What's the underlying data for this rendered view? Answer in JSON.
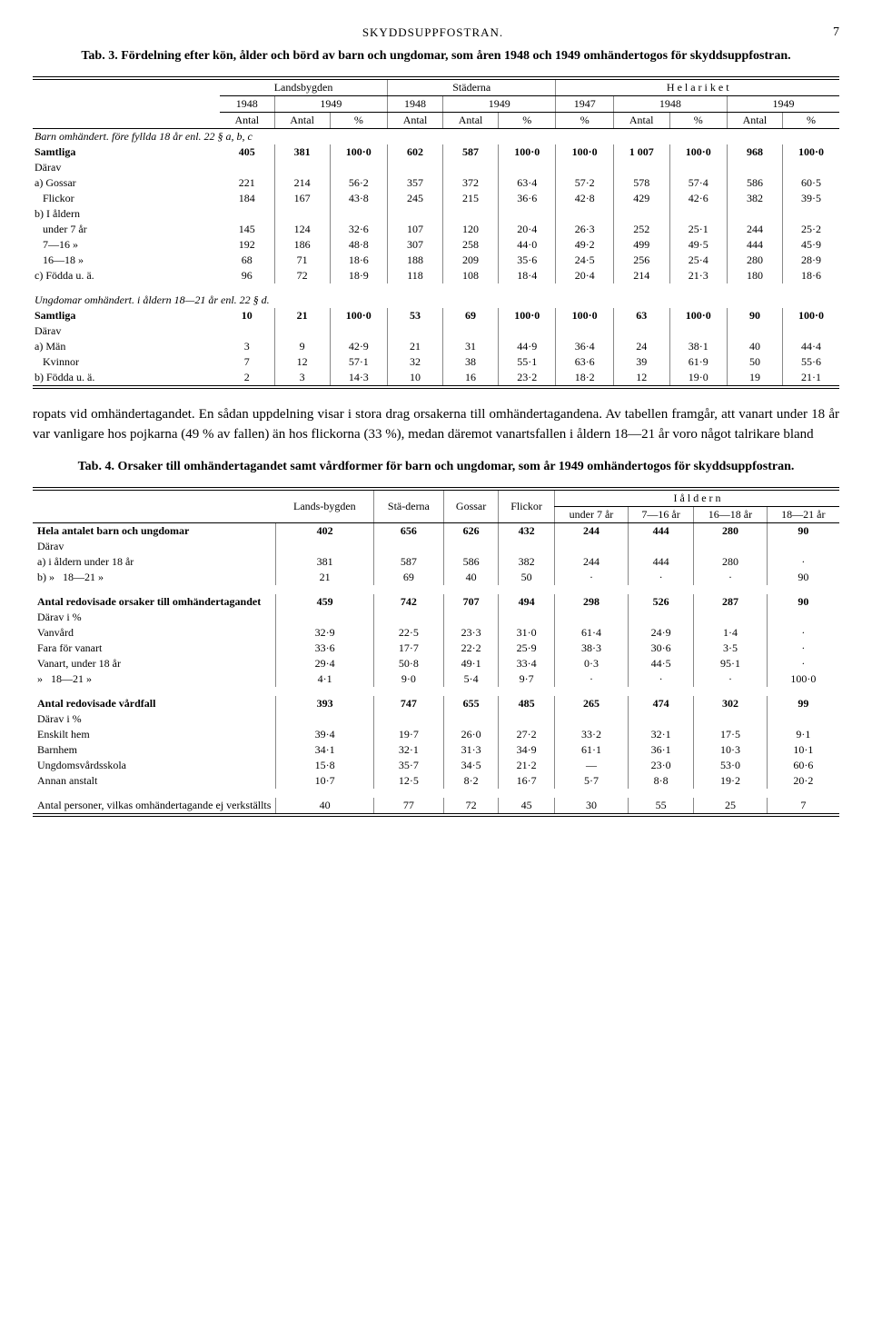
{
  "header": {
    "running": "SKYDDSUPPFOSTRAN.",
    "page": "7"
  },
  "tab3": {
    "title_prefix": "Tab. 3.",
    "title": "Fördelning efter kön, ålder och börd av barn och ungdomar, som åren 1948 och 1949 omhändertogos för skyddsuppfostran.",
    "groups": [
      "Landsbygden",
      "Städerna",
      "H e l a   r i k e t"
    ],
    "years": [
      "1948",
      "1949",
      "1948",
      "1949",
      "1947",
      "1948",
      "1949"
    ],
    "subhead": [
      "Antal",
      "Antal",
      "%",
      "Antal",
      "Antal",
      "%",
      "%",
      "Antal",
      "%",
      "Antal",
      "%"
    ],
    "section1_label": "Barn omhändert. före fyllda 18 år enl. 22 § a, b, c",
    "rows1": [
      {
        "label": "Samtliga",
        "vals": [
          "405",
          "381",
          "100·0",
          "602",
          "587",
          "100·0",
          "100·0",
          "1 007",
          "100·0",
          "968",
          "100·0"
        ],
        "bold": true
      },
      {
        "label": "Därav",
        "vals": [
          "",
          "",
          "",
          "",
          "",
          "",
          "",
          "",
          "",
          "",
          ""
        ]
      },
      {
        "label": "a) Gossar",
        "vals": [
          "221",
          "214",
          "56·2",
          "357",
          "372",
          "63·4",
          "57·2",
          "578",
          "57·4",
          "586",
          "60·5"
        ]
      },
      {
        "label": "    Flickor",
        "vals": [
          "184",
          "167",
          "43·8",
          "245",
          "215",
          "36·6",
          "42·8",
          "429",
          "42·6",
          "382",
          "39·5"
        ]
      },
      {
        "label": "b) I åldern",
        "vals": [
          "",
          "",
          "",
          "",
          "",
          "",
          "",
          "",
          "",
          "",
          ""
        ]
      },
      {
        "label": "    under 7 år",
        "vals": [
          "145",
          "124",
          "32·6",
          "107",
          "120",
          "20·4",
          "26·3",
          "252",
          "25·1",
          "244",
          "25·2"
        ]
      },
      {
        "label": "    7—16 »",
        "vals": [
          "192",
          "186",
          "48·8",
          "307",
          "258",
          "44·0",
          "49·2",
          "499",
          "49·5",
          "444",
          "45·9"
        ]
      },
      {
        "label": "    16—18 »",
        "vals": [
          "68",
          "71",
          "18·6",
          "188",
          "209",
          "35·6",
          "24·5",
          "256",
          "25·4",
          "280",
          "28·9"
        ]
      },
      {
        "label": "c) Födda u. ä.",
        "vals": [
          "96",
          "72",
          "18·9",
          "118",
          "108",
          "18·4",
          "20·4",
          "214",
          "21·3",
          "180",
          "18·6"
        ]
      }
    ],
    "section2_label": "Ungdomar omhändert. i åldern 18—21 år enl. 22 § d.",
    "rows2": [
      {
        "label": "Samtliga",
        "vals": [
          "10",
          "21",
          "100·0",
          "53",
          "69",
          "100·0",
          "100·0",
          "63",
          "100·0",
          "90",
          "100·0"
        ],
        "bold": true
      },
      {
        "label": "Därav",
        "vals": [
          "",
          "",
          "",
          "",
          "",
          "",
          "",
          "",
          "",
          "",
          ""
        ]
      },
      {
        "label": "a) Män",
        "vals": [
          "3",
          "9",
          "42·9",
          "21",
          "31",
          "44·9",
          "36·4",
          "24",
          "38·1",
          "40",
          "44·4"
        ]
      },
      {
        "label": "    Kvinnor",
        "vals": [
          "7",
          "12",
          "57·1",
          "32",
          "38",
          "55·1",
          "63·6",
          "39",
          "61·9",
          "50",
          "55·6"
        ]
      },
      {
        "label": "b) Födda u. ä.",
        "vals": [
          "2",
          "3",
          "14·3",
          "10",
          "16",
          "23·2",
          "18·2",
          "12",
          "19·0",
          "19",
          "21·1"
        ]
      }
    ]
  },
  "body": "ropats vid omhändertagandet. En sådan uppdelning visar i stora drag orsakerna till omhändertagandena. Av tabellen framgår, att vanart under 18 år var vanligare hos pojkarna (49 % av fallen) än hos flickorna (33 %), medan däremot vanartsfallen i åldern 18—21 år voro något talrikare bland",
  "tab4": {
    "title_prefix": "Tab. 4.",
    "title": "Orsaker till omhändertagandet samt vårdformer för barn och ungdomar, som år 1949 omhändertogos för skyddsuppfostran.",
    "head_top": [
      "Lands-bygden",
      "Stä-derna",
      "Gossar",
      "Flickor",
      "I  å l d e r n"
    ],
    "head_age": [
      "under 7 år",
      "7—16 år",
      "16—18 år",
      "18—21 år"
    ],
    "rows": [
      {
        "label": "Hela antalet barn och ungdomar",
        "vals": [
          "402",
          "656",
          "626",
          "432",
          "244",
          "444",
          "280",
          "90"
        ],
        "bold": true
      },
      {
        "label": "Därav",
        "vals": [
          "",
          "",
          "",
          "",
          "",
          "",
          "",
          ""
        ]
      },
      {
        "label": "a) i åldern under 18 år",
        "vals": [
          "381",
          "587",
          "586",
          "382",
          "244",
          "444",
          "280",
          "·"
        ]
      },
      {
        "label": "b) »        18—21 »",
        "vals": [
          "21",
          "69",
          "40",
          "50",
          "·",
          "·",
          "·",
          "90"
        ]
      },
      {
        "label": "__spacer__",
        "vals": []
      },
      {
        "label": "Antal redovisade orsaker till omhändertagandet",
        "vals": [
          "459",
          "742",
          "707",
          "494",
          "298",
          "526",
          "287",
          "90"
        ],
        "bold": true
      },
      {
        "label": "Därav i %",
        "vals": [
          "",
          "",
          "",
          "",
          "",
          "",
          "",
          ""
        ]
      },
      {
        "label": "Vanvård",
        "vals": [
          "32·9",
          "22·5",
          "23·3",
          "31·0",
          "61·4",
          "24·9",
          "1·4",
          "·"
        ]
      },
      {
        "label": "Fara för vanart",
        "vals": [
          "33·6",
          "17·7",
          "22·2",
          "25·9",
          "38·3",
          "30·6",
          "3·5",
          "·"
        ]
      },
      {
        "label": "Vanart, under 18 år",
        "vals": [
          "29·4",
          "50·8",
          "49·1",
          "33·4",
          "0·3",
          "44·5",
          "95·1",
          "·"
        ]
      },
      {
        "label": "»         18—21 »",
        "vals": [
          "4·1",
          "9·0",
          "5·4",
          "9·7",
          "·",
          "·",
          "·",
          "100·0"
        ]
      },
      {
        "label": "__spacer__",
        "vals": []
      },
      {
        "label": "Antal redovisade vårdfall",
        "vals": [
          "393",
          "747",
          "655",
          "485",
          "265",
          "474",
          "302",
          "99"
        ],
        "bold": true
      },
      {
        "label": "Därav i %",
        "vals": [
          "",
          "",
          "",
          "",
          "",
          "",
          "",
          ""
        ]
      },
      {
        "label": "Enskilt hem",
        "vals": [
          "39·4",
          "19·7",
          "26·0",
          "27·2",
          "33·2",
          "32·1",
          "17·5",
          "9·1"
        ]
      },
      {
        "label": "Barnhem",
        "vals": [
          "34·1",
          "32·1",
          "31·3",
          "34·9",
          "61·1",
          "36·1",
          "10·3",
          "10·1"
        ]
      },
      {
        "label": "Ungdomsvårdsskola",
        "vals": [
          "15·8",
          "35·7",
          "34·5",
          "21·2",
          "—",
          "23·0",
          "53·0",
          "60·6"
        ]
      },
      {
        "label": "Annan anstalt",
        "vals": [
          "10·7",
          "12·5",
          "8·2",
          "16·7",
          "5·7",
          "8·8",
          "19·2",
          "20·2"
        ]
      },
      {
        "label": "__spacer__",
        "vals": []
      },
      {
        "label": "Antal personer, vilkas omhändertagande ej verkställts",
        "vals": [
          "40",
          "77",
          "72",
          "45",
          "30",
          "55",
          "25",
          "7"
        ]
      }
    ]
  }
}
